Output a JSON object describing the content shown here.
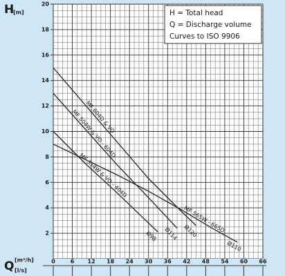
{
  "chart_data": {
    "type": "line",
    "y_label": "H",
    "y_unit": "[m]",
    "x_label": "Q",
    "x_unit": "[m³/h]",
    "x2_unit": "[l/s]",
    "legend_text": [
      "H = Total head",
      "Q = Discharge volume",
      "Curves to ISO 9906"
    ],
    "xlim": [
      0,
      66
    ],
    "xticks": [
      0,
      6,
      12,
      18,
      24,
      30,
      36,
      42,
      48,
      54,
      60,
      66
    ],
    "ylim": [
      0,
      20
    ],
    "yticks": [
      2,
      4,
      6,
      8,
      10,
      12,
      14,
      16,
      18,
      20
    ],
    "grid": true,
    "series": [
      {
        "name": "MF 604D & VO",
        "end_label": "Ø120",
        "color": "#222222",
        "x": [
          0,
          10,
          20,
          30,
          40,
          45
        ],
        "values": [
          15,
          12.1,
          9.2,
          6.3,
          3.8,
          2.6
        ]
      },
      {
        "name": "MF 504W & VO - 604D",
        "end_label": "Ø114",
        "color": "#222222",
        "x": [
          0,
          10,
          20,
          30,
          39
        ],
        "values": [
          13,
          10.2,
          7.4,
          4.8,
          2.4
        ]
      },
      {
        "name": "MF 354W & VO - 404D",
        "end_label": "Ø98",
        "color": "#222222",
        "x": [
          0,
          10,
          20,
          30,
          33
        ],
        "values": [
          10,
          7.5,
          5.2,
          2.8,
          2.1
        ]
      },
      {
        "name": "MF 565W - 665D",
        "end_label": "Ø110",
        "color": "#222222",
        "x": [
          0,
          10,
          20,
          30,
          40,
          50,
          58
        ],
        "values": [
          9,
          7.8,
          6.6,
          5.3,
          3.9,
          2.4,
          1.3
        ]
      }
    ]
  }
}
